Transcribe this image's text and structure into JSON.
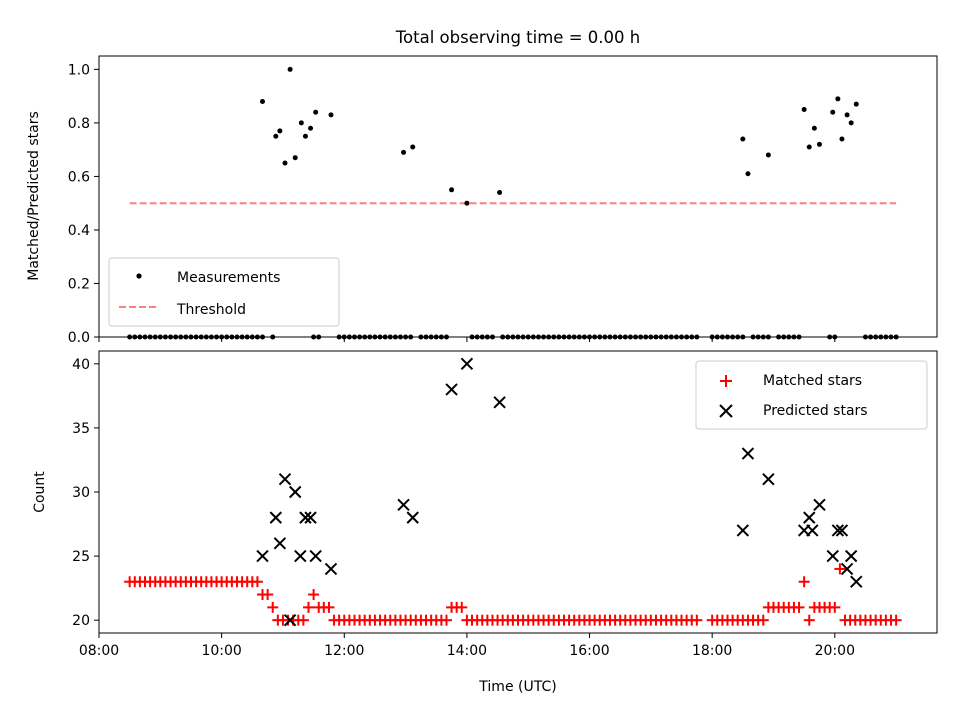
{
  "chart_data": [
    {
      "type": "scatter",
      "title": "Total observing time = 0.00 h",
      "xlabel": "",
      "ylabel": "Matched/Predicted stars",
      "ylim": [
        0,
        1.05
      ],
      "yticks": [
        "0.0",
        "0.2",
        "0.4",
        "0.6",
        "0.8",
        "1.0"
      ],
      "grid": false,
      "legend_position": "lower-left",
      "legend": [
        "Measurements",
        "Threshold"
      ],
      "colors": {
        "measurements": "#000000",
        "threshold": "#ff7f7f"
      },
      "threshold": {
        "value": 0.5,
        "x_start": "08:30",
        "x_end": "21:00"
      },
      "zero_series_x": [
        "08:30",
        "08:35",
        "08:40",
        "08:45",
        "08:50",
        "08:55",
        "09:00",
        "09:05",
        "09:10",
        "09:15",
        "09:20",
        "09:25",
        "09:30",
        "09:35",
        "09:40",
        "09:45",
        "09:50",
        "09:55",
        "10:00",
        "10:05",
        "10:10",
        "10:15",
        "10:20",
        "10:25",
        "10:30",
        "10:35",
        "10:40",
        "10:50",
        "11:30",
        "11:35",
        "11:55",
        "12:00",
        "12:05",
        "12:10",
        "12:15",
        "12:20",
        "12:25",
        "12:30",
        "12:35",
        "12:40",
        "12:45",
        "12:50",
        "12:55",
        "13:00",
        "13:05",
        "13:15",
        "13:20",
        "13:25",
        "13:30",
        "13:35",
        "13:40",
        "14:05",
        "14:10",
        "14:15",
        "14:20",
        "14:25",
        "14:35",
        "14:40",
        "14:45",
        "14:50",
        "14:55",
        "15:00",
        "15:05",
        "15:10",
        "15:15",
        "15:20",
        "15:25",
        "15:30",
        "15:35",
        "15:40",
        "15:45",
        "15:50",
        "15:55",
        "16:00",
        "16:05",
        "16:10",
        "16:15",
        "16:20",
        "16:25",
        "16:30",
        "16:35",
        "16:40",
        "16:45",
        "16:50",
        "16:55",
        "17:00",
        "17:05",
        "17:10",
        "17:15",
        "17:20",
        "17:25",
        "17:30",
        "17:35",
        "17:40",
        "17:45",
        "18:00",
        "18:05",
        "18:10",
        "18:15",
        "18:20",
        "18:25",
        "18:30",
        "18:40",
        "18:45",
        "18:50",
        "18:55",
        "19:05",
        "19:10",
        "19:15",
        "19:20",
        "19:25",
        "19:55",
        "20:00",
        "20:30",
        "20:35",
        "20:40",
        "20:45",
        "20:50",
        "20:55",
        "21:00"
      ],
      "points": [
        {
          "x": "10:40",
          "y": 0.88
        },
        {
          "x": "10:53",
          "y": 0.75
        },
        {
          "x": "10:57",
          "y": 0.77
        },
        {
          "x": "11:02",
          "y": 0.65
        },
        {
          "x": "11:07",
          "y": 1.0
        },
        {
          "x": "11:12",
          "y": 0.67
        },
        {
          "x": "11:18",
          "y": 0.8
        },
        {
          "x": "11:22",
          "y": 0.75
        },
        {
          "x": "11:27",
          "y": 0.78
        },
        {
          "x": "11:32",
          "y": 0.84
        },
        {
          "x": "11:47",
          "y": 0.83
        },
        {
          "x": "12:58",
          "y": 0.69
        },
        {
          "x": "13:07",
          "y": 0.71
        },
        {
          "x": "13:45",
          "y": 0.55
        },
        {
          "x": "14:00",
          "y": 0.5
        },
        {
          "x": "14:32",
          "y": 0.54
        },
        {
          "x": "18:30",
          "y": 0.74
        },
        {
          "x": "18:35",
          "y": 0.61
        },
        {
          "x": "18:55",
          "y": 0.68
        },
        {
          "x": "19:30",
          "y": 0.85
        },
        {
          "x": "19:35",
          "y": 0.71
        },
        {
          "x": "19:40",
          "y": 0.78
        },
        {
          "x": "19:45",
          "y": 0.72
        },
        {
          "x": "19:58",
          "y": 0.84
        },
        {
          "x": "20:03",
          "y": 0.89
        },
        {
          "x": "20:07",
          "y": 0.74
        },
        {
          "x": "20:12",
          "y": 0.83
        },
        {
          "x": "20:16",
          "y": 0.8
        },
        {
          "x": "20:21",
          "y": 0.87
        }
      ]
    },
    {
      "type": "scatter",
      "title": "",
      "xlabel": "Time (UTC)",
      "ylabel": "Count",
      "xlim": [
        "08:00",
        "21:40"
      ],
      "ylim": [
        19,
        41
      ],
      "xticks": [
        "08:00",
        "10:00",
        "12:00",
        "14:00",
        "16:00",
        "18:00",
        "20:00"
      ],
      "yticks": [
        "20",
        "25",
        "30",
        "35",
        "40"
      ],
      "grid": false,
      "legend_position": "top-right",
      "legend": [
        "Matched stars",
        "Predicted stars"
      ],
      "colors": {
        "matched": "#ff0000",
        "predicted": "#000000"
      },
      "matched": [
        {
          "x": "08:30",
          "y": 23
        },
        {
          "x": "08:35",
          "y": 23
        },
        {
          "x": "08:40",
          "y": 23
        },
        {
          "x": "08:45",
          "y": 23
        },
        {
          "x": "08:50",
          "y": 23
        },
        {
          "x": "08:55",
          "y": 23
        },
        {
          "x": "09:00",
          "y": 23
        },
        {
          "x": "09:05",
          "y": 23
        },
        {
          "x": "09:10",
          "y": 23
        },
        {
          "x": "09:15",
          "y": 23
        },
        {
          "x": "09:20",
          "y": 23
        },
        {
          "x": "09:25",
          "y": 23
        },
        {
          "x": "09:30",
          "y": 23
        },
        {
          "x": "09:35",
          "y": 23
        },
        {
          "x": "09:40",
          "y": 23
        },
        {
          "x": "09:45",
          "y": 23
        },
        {
          "x": "09:50",
          "y": 23
        },
        {
          "x": "09:55",
          "y": 23
        },
        {
          "x": "10:00",
          "y": 23
        },
        {
          "x": "10:05",
          "y": 23
        },
        {
          "x": "10:10",
          "y": 23
        },
        {
          "x": "10:15",
          "y": 23
        },
        {
          "x": "10:20",
          "y": 23
        },
        {
          "x": "10:25",
          "y": 23
        },
        {
          "x": "10:30",
          "y": 23
        },
        {
          "x": "10:35",
          "y": 23
        },
        {
          "x": "10:40",
          "y": 22
        },
        {
          "x": "10:45",
          "y": 22
        },
        {
          "x": "10:50",
          "y": 21
        },
        {
          "x": "10:55",
          "y": 20
        },
        {
          "x": "11:00",
          "y": 20
        },
        {
          "x": "11:05",
          "y": 20
        },
        {
          "x": "11:10",
          "y": 20
        },
        {
          "x": "11:15",
          "y": 20
        },
        {
          "x": "11:20",
          "y": 20
        },
        {
          "x": "11:25",
          "y": 21
        },
        {
          "x": "11:30",
          "y": 22
        },
        {
          "x": "11:35",
          "y": 21
        },
        {
          "x": "11:40",
          "y": 21
        },
        {
          "x": "11:45",
          "y": 21
        },
        {
          "x": "11:50",
          "y": 20
        },
        {
          "x": "11:55",
          "y": 20
        },
        {
          "x": "12:00",
          "y": 20
        },
        {
          "x": "12:05",
          "y": 20
        },
        {
          "x": "12:10",
          "y": 20
        },
        {
          "x": "12:15",
          "y": 20
        },
        {
          "x": "12:20",
          "y": 20
        },
        {
          "x": "12:25",
          "y": 20
        },
        {
          "x": "12:30",
          "y": 20
        },
        {
          "x": "12:35",
          "y": 20
        },
        {
          "x": "12:40",
          "y": 20
        },
        {
          "x": "12:45",
          "y": 20
        },
        {
          "x": "12:50",
          "y": 20
        },
        {
          "x": "12:55",
          "y": 20
        },
        {
          "x": "13:00",
          "y": 20
        },
        {
          "x": "13:05",
          "y": 20
        },
        {
          "x": "13:10",
          "y": 20
        },
        {
          "x": "13:15",
          "y": 20
        },
        {
          "x": "13:20",
          "y": 20
        },
        {
          "x": "13:25",
          "y": 20
        },
        {
          "x": "13:30",
          "y": 20
        },
        {
          "x": "13:35",
          "y": 20
        },
        {
          "x": "13:40",
          "y": 20
        },
        {
          "x": "13:45",
          "y": 21
        },
        {
          "x": "13:50",
          "y": 21
        },
        {
          "x": "13:55",
          "y": 21
        },
        {
          "x": "14:00",
          "y": 20
        },
        {
          "x": "14:05",
          "y": 20
        },
        {
          "x": "14:10",
          "y": 20
        },
        {
          "x": "14:15",
          "y": 20
        },
        {
          "x": "14:20",
          "y": 20
        },
        {
          "x": "14:25",
          "y": 20
        },
        {
          "x": "14:30",
          "y": 20
        },
        {
          "x": "14:35",
          "y": 20
        },
        {
          "x": "14:40",
          "y": 20
        },
        {
          "x": "14:45",
          "y": 20
        },
        {
          "x": "14:50",
          "y": 20
        },
        {
          "x": "14:55",
          "y": 20
        },
        {
          "x": "15:00",
          "y": 20
        },
        {
          "x": "15:05",
          "y": 20
        },
        {
          "x": "15:10",
          "y": 20
        },
        {
          "x": "15:15",
          "y": 20
        },
        {
          "x": "15:20",
          "y": 20
        },
        {
          "x": "15:25",
          "y": 20
        },
        {
          "x": "15:30",
          "y": 20
        },
        {
          "x": "15:35",
          "y": 20
        },
        {
          "x": "15:40",
          "y": 20
        },
        {
          "x": "15:45",
          "y": 20
        },
        {
          "x": "15:50",
          "y": 20
        },
        {
          "x": "15:55",
          "y": 20
        },
        {
          "x": "16:00",
          "y": 20
        },
        {
          "x": "16:05",
          "y": 20
        },
        {
          "x": "16:10",
          "y": 20
        },
        {
          "x": "16:15",
          "y": 20
        },
        {
          "x": "16:20",
          "y": 20
        },
        {
          "x": "16:25",
          "y": 20
        },
        {
          "x": "16:30",
          "y": 20
        },
        {
          "x": "16:35",
          "y": 20
        },
        {
          "x": "16:40",
          "y": 20
        },
        {
          "x": "16:45",
          "y": 20
        },
        {
          "x": "16:50",
          "y": 20
        },
        {
          "x": "16:55",
          "y": 20
        },
        {
          "x": "17:00",
          "y": 20
        },
        {
          "x": "17:05",
          "y": 20
        },
        {
          "x": "17:10",
          "y": 20
        },
        {
          "x": "17:15",
          "y": 20
        },
        {
          "x": "17:20",
          "y": 20
        },
        {
          "x": "17:25",
          "y": 20
        },
        {
          "x": "17:30",
          "y": 20
        },
        {
          "x": "17:35",
          "y": 20
        },
        {
          "x": "17:40",
          "y": 20
        },
        {
          "x": "17:45",
          "y": 20
        },
        {
          "x": "18:00",
          "y": 20
        },
        {
          "x": "18:05",
          "y": 20
        },
        {
          "x": "18:10",
          "y": 20
        },
        {
          "x": "18:15",
          "y": 20
        },
        {
          "x": "18:20",
          "y": 20
        },
        {
          "x": "18:25",
          "y": 20
        },
        {
          "x": "18:30",
          "y": 20
        },
        {
          "x": "18:35",
          "y": 20
        },
        {
          "x": "18:40",
          "y": 20
        },
        {
          "x": "18:45",
          "y": 20
        },
        {
          "x": "18:50",
          "y": 20
        },
        {
          "x": "18:55",
          "y": 21
        },
        {
          "x": "19:00",
          "y": 21
        },
        {
          "x": "19:05",
          "y": 21
        },
        {
          "x": "19:10",
          "y": 21
        },
        {
          "x": "19:15",
          "y": 21
        },
        {
          "x": "19:20",
          "y": 21
        },
        {
          "x": "19:25",
          "y": 21
        },
        {
          "x": "19:30",
          "y": 23
        },
        {
          "x": "19:35",
          "y": 20
        },
        {
          "x": "19:40",
          "y": 21
        },
        {
          "x": "19:45",
          "y": 21
        },
        {
          "x": "19:50",
          "y": 21
        },
        {
          "x": "19:55",
          "y": 21
        },
        {
          "x": "20:00",
          "y": 21
        },
        {
          "x": "20:05",
          "y": 24
        },
        {
          "x": "20:10",
          "y": 20
        },
        {
          "x": "20:15",
          "y": 20
        },
        {
          "x": "20:20",
          "y": 20
        },
        {
          "x": "20:25",
          "y": 20
        },
        {
          "x": "20:30",
          "y": 20
        },
        {
          "x": "20:35",
          "y": 20
        },
        {
          "x": "20:40",
          "y": 20
        },
        {
          "x": "20:45",
          "y": 20
        },
        {
          "x": "20:50",
          "y": 20
        },
        {
          "x": "20:55",
          "y": 20
        },
        {
          "x": "21:00",
          "y": 20
        }
      ],
      "predicted": [
        {
          "x": "10:40",
          "y": 25
        },
        {
          "x": "10:53",
          "y": 28
        },
        {
          "x": "10:57",
          "y": 26
        },
        {
          "x": "11:02",
          "y": 31
        },
        {
          "x": "11:07",
          "y": 20
        },
        {
          "x": "11:12",
          "y": 30
        },
        {
          "x": "11:17",
          "y": 25
        },
        {
          "x": "11:22",
          "y": 28
        },
        {
          "x": "11:27",
          "y": 28
        },
        {
          "x": "11:32",
          "y": 25
        },
        {
          "x": "11:47",
          "y": 24
        },
        {
          "x": "12:58",
          "y": 29
        },
        {
          "x": "13:07",
          "y": 28
        },
        {
          "x": "13:45",
          "y": 38
        },
        {
          "x": "14:00",
          "y": 40
        },
        {
          "x": "14:32",
          "y": 37
        },
        {
          "x": "18:30",
          "y": 27
        },
        {
          "x": "18:35",
          "y": 33
        },
        {
          "x": "18:55",
          "y": 31
        },
        {
          "x": "19:30",
          "y": 27
        },
        {
          "x": "19:35",
          "y": 28
        },
        {
          "x": "19:38",
          "y": 27
        },
        {
          "x": "19:45",
          "y": 29
        },
        {
          "x": "19:58",
          "y": 25
        },
        {
          "x": "20:03",
          "y": 27
        },
        {
          "x": "20:07",
          "y": 27
        },
        {
          "x": "20:12",
          "y": 24
        },
        {
          "x": "20:16",
          "y": 25
        },
        {
          "x": "20:21",
          "y": 23
        }
      ]
    }
  ]
}
